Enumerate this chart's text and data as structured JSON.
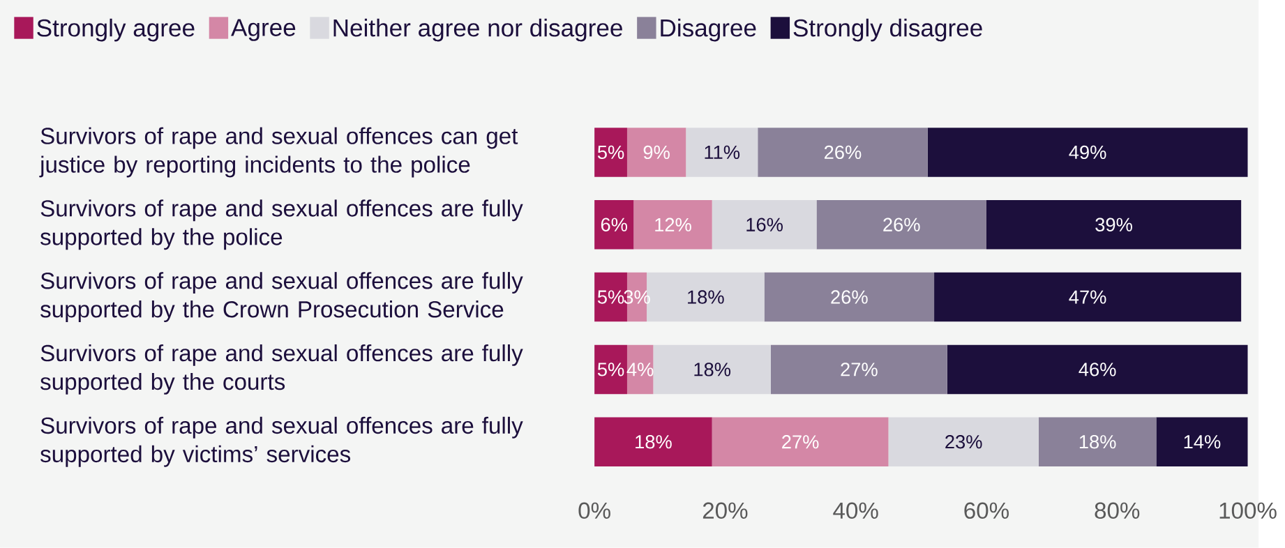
{
  "chart_data": {
    "type": "bar",
    "orientation": "horizontal",
    "stacked": true,
    "legend": "top",
    "categories": [
      "Survivors of rape and sexual offences can get justice by reporting incidents to the police",
      "Survivors of rape and sexual offences are fully supported by the police",
      "Survivors of rape and sexual offences are fully supported by the Crown Prosecution Service",
      "Survivors of rape and sexual offences are fully supported by the courts",
      "Survivors of rape and sexual offences are fully supported by victims’ services"
    ],
    "series": [
      {
        "name": "Strongly agree",
        "color": "#a8185a",
        "values": [
          5,
          6,
          5,
          5,
          18
        ],
        "value_labels": [
          "5%",
          "6%",
          "5%",
          "5%",
          "18%"
        ]
      },
      {
        "name": "Agree",
        "color": "#d487a6",
        "values": [
          9,
          12,
          3,
          4,
          27
        ],
        "value_labels": [
          "9%",
          "12%",
          "3%",
          "4%",
          "27%"
        ]
      },
      {
        "name": "Neither agree nor disagree",
        "color": "#d9d9df",
        "values": [
          11,
          16,
          18,
          18,
          23
        ],
        "value_labels": [
          "11%",
          "16%",
          "18%",
          "18%",
          "23%"
        ]
      },
      {
        "name": "Disagree",
        "color": "#8a8199",
        "values": [
          26,
          26,
          26,
          27,
          18
        ],
        "value_labels": [
          "26%",
          "26%",
          "26%",
          "27%",
          "18%"
        ]
      },
      {
        "name": "Strongly disagree",
        "color": "#1c0f3c",
        "values": [
          49,
          39,
          47,
          46,
          14
        ],
        "value_labels": [
          "49%",
          "39%",
          "47%",
          "46%",
          "14%"
        ]
      }
    ],
    "xlim": [
      0,
      100
    ],
    "xticks": [
      {
        "value": 0,
        "label": "0%"
      },
      {
        "value": 20,
        "label": "20%"
      },
      {
        "value": 40,
        "label": "40%"
      },
      {
        "value": 60,
        "label": "60%"
      },
      {
        "value": 80,
        "label": "80%"
      },
      {
        "value": 100,
        "label": "100%"
      }
    ]
  }
}
